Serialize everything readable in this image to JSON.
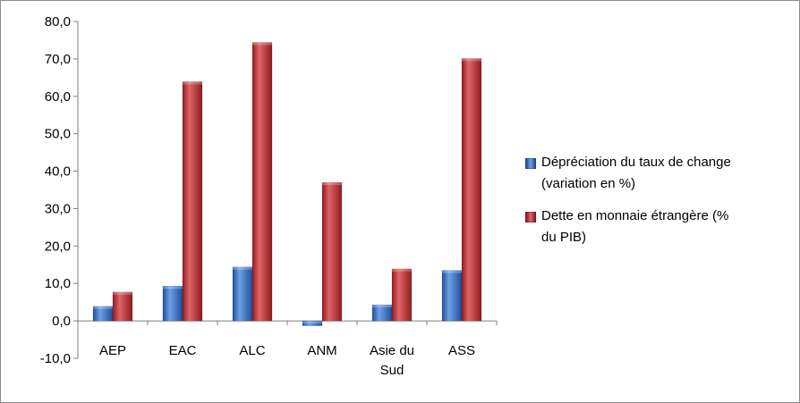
{
  "chart_data": {
    "type": "bar",
    "title": "",
    "xlabel": "",
    "ylabel": "",
    "categories": [
      "AEP",
      "EAC",
      "ALC",
      "ANM",
      "Asie du Sud",
      "ASS"
    ],
    "category_lines": [
      [
        "AEP"
      ],
      [
        "EAC"
      ],
      [
        "ALC"
      ],
      [
        "ANM"
      ],
      [
        "Asie du",
        "Sud"
      ],
      [
        "ASS"
      ]
    ],
    "series": [
      {
        "name": "Dépréciation du taux de change (variation en %)",
        "color": "#3f74c4",
        "values": [
          3.9,
          9.3,
          14.4,
          -1.3,
          4.3,
          13.5
        ]
      },
      {
        "name": "Dette en monnaie étrangère (% du PIB)",
        "color": "#c0393b",
        "values": [
          7.7,
          63.9,
          74.4,
          37.0,
          13.9,
          70.1
        ]
      }
    ],
    "ylim": [
      -10,
      80
    ],
    "yticks": [
      "-10,0",
      "0,0",
      "10,0",
      "20,0",
      "30,0",
      "40,0",
      "50,0",
      "60,0",
      "70,0",
      "80,0"
    ],
    "ytick_values": [
      -10,
      0,
      10,
      20,
      30,
      40,
      50,
      60,
      70,
      80
    ],
    "grid": false,
    "legend_position": "right"
  },
  "legend": {
    "items": [
      {
        "lines": [
          "Dépréciation du taux de change",
          "(variation en %)"
        ]
      },
      {
        "lines": [
          "Dette en monnaie étrangère (%",
          "du PIB)"
        ]
      }
    ]
  }
}
